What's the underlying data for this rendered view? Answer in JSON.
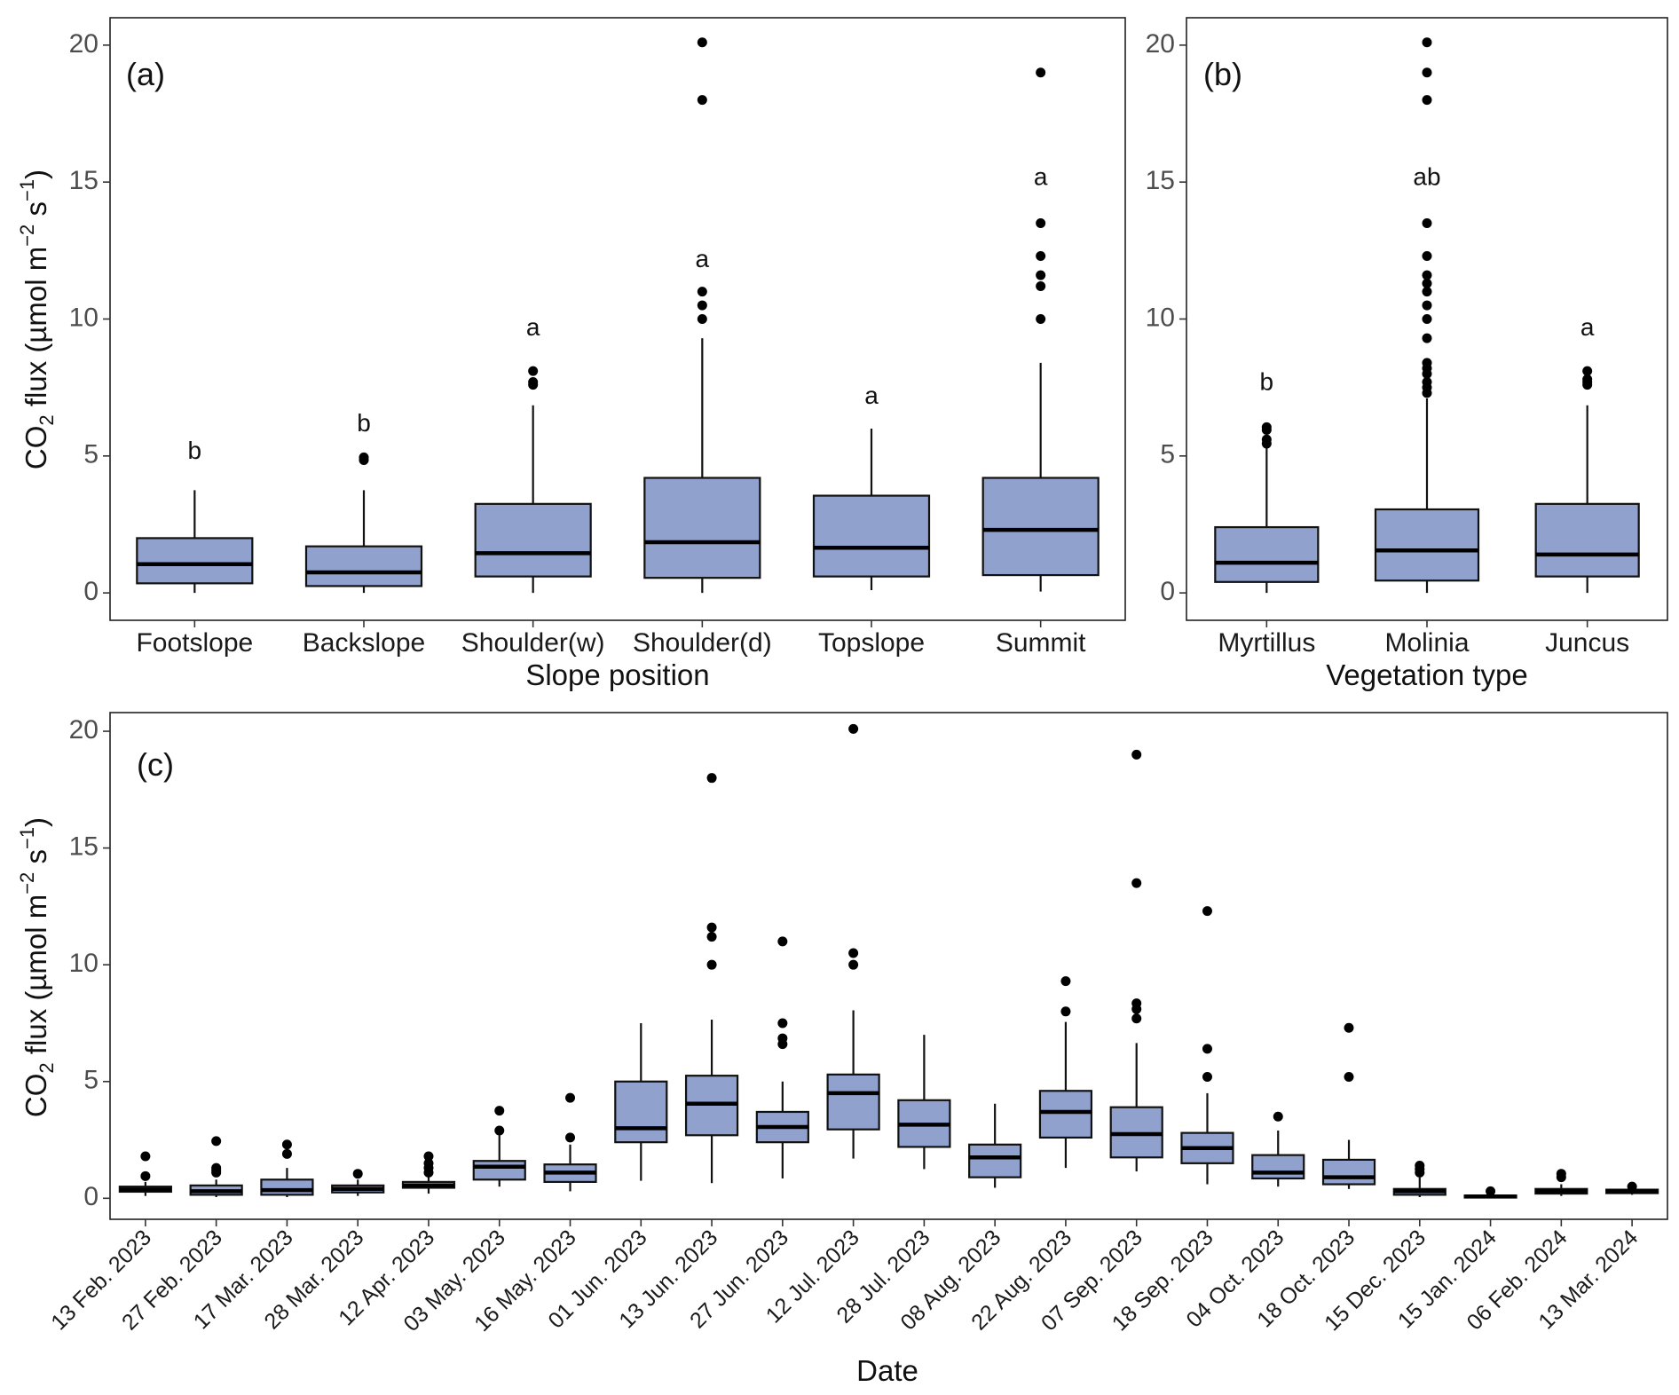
{
  "chart_data": [
    {
      "panel_label": "(a)",
      "type": "box",
      "xlabel": "Slope position",
      "ylabel_parts": {
        "pre": "CO",
        "sub": "2",
        "mid": " flux (µmol m",
        "sup1": "−2",
        "mid2": " s",
        "sup2": "−1",
        "post": ")"
      },
      "ylim": [
        -1,
        21
      ],
      "yticks": [
        0,
        5,
        10,
        15,
        20
      ],
      "yticklabels": [
        "0",
        "5",
        "10",
        "15",
        "20"
      ],
      "categories": [
        "Footslope",
        "Backslope",
        "Shoulder(w)",
        "Shoulder(d)",
        "Topslope",
        "Summit"
      ],
      "boxes": [
        {
          "min": 0,
          "q1": 0.35,
          "median": 1.05,
          "q3": 2.0,
          "max": 3.75,
          "outliers": [],
          "sig": "b",
          "sig_y": 4.9
        },
        {
          "min": 0,
          "q1": 0.25,
          "median": 0.75,
          "q3": 1.7,
          "max": 3.75,
          "outliers": [
            4.85,
            4.95
          ],
          "sig": "b",
          "sig_y": 5.9
        },
        {
          "min": 0,
          "q1": 0.6,
          "median": 1.45,
          "q3": 3.25,
          "max": 6.85,
          "outliers": [
            7.6,
            7.7,
            8.1
          ],
          "sig": "a",
          "sig_y": 9.4
        },
        {
          "min": 0,
          "q1": 0.55,
          "median": 1.85,
          "q3": 4.2,
          "max": 9.3,
          "outliers": [
            10.0,
            10.5,
            11.0,
            18.0,
            20.1
          ],
          "sig": "a",
          "sig_y": 11.9
        },
        {
          "min": 0.1,
          "q1": 0.6,
          "median": 1.65,
          "q3": 3.55,
          "max": 6.0,
          "outliers": [],
          "sig": "a",
          "sig_y": 6.9
        },
        {
          "min": 0.05,
          "q1": 0.65,
          "median": 2.3,
          "q3": 4.2,
          "max": 8.4,
          "outliers": [
            10.0,
            11.2,
            11.6,
            12.3,
            13.5,
            19.0
          ],
          "sig": "a",
          "sig_y": 14.9
        }
      ]
    },
    {
      "panel_label": "(b)",
      "type": "box",
      "xlabel": "Vegetation type",
      "ylim": [
        -1,
        21
      ],
      "yticks": [
        0,
        5,
        10,
        15,
        20
      ],
      "yticklabels": [
        "0",
        "5",
        "10",
        "15",
        "20"
      ],
      "categories": [
        "Myrtillus",
        "Molinia",
        "Juncus"
      ],
      "boxes": [
        {
          "min": 0,
          "q1": 0.4,
          "median": 1.1,
          "q3": 2.4,
          "max": 5.35,
          "outliers": [
            5.45,
            5.6,
            5.95,
            6.05
          ],
          "sig": "b",
          "sig_y": 7.4
        },
        {
          "min": 0,
          "q1": 0.45,
          "median": 1.55,
          "q3": 3.05,
          "max": 7.1,
          "outliers": [
            7.3,
            7.5,
            7.7,
            8.0,
            8.2,
            8.4,
            9.3,
            10.0,
            10.5,
            11.0,
            11.3,
            11.6,
            12.3,
            13.5,
            18.0,
            19.0,
            20.1
          ],
          "sig": "ab",
          "sig_y": 14.9
        },
        {
          "min": 0,
          "q1": 0.6,
          "median": 1.4,
          "q3": 3.25,
          "max": 6.85,
          "outliers": [
            7.6,
            7.7,
            7.8,
            8.1
          ],
          "sig": "a",
          "sig_y": 9.4
        }
      ]
    },
    {
      "panel_label": "(c)",
      "type": "box",
      "xlabel": "Date",
      "ylim": [
        -0.9,
        20.8
      ],
      "yticks": [
        0,
        5,
        10,
        15,
        20
      ],
      "yticklabels": [
        "0",
        "5",
        "10",
        "15",
        "20"
      ],
      "categories": [
        "13 Feb. 2023",
        "27 Feb. 2023",
        "17 Mar. 2023",
        "28 Mar. 2023",
        "12 Apr. 2023",
        "03 May. 2023",
        "16 May. 2023",
        "01 Jun. 2023",
        "13 Jun. 2023",
        "27 Jun. 2023",
        "12 Jul. 2023",
        "28 Jul. 2023",
        "08 Aug. 2023",
        "22 Aug. 2023",
        "07 Sep. 2023",
        "18 Sep. 2023",
        "04 Oct. 2023",
        "18 Oct. 2023",
        "15 Dec. 2023",
        "15 Jan. 2024",
        "06 Feb. 2024",
        "13 Mar. 2024"
      ],
      "boxes": [
        {
          "min": 0.1,
          "q1": 0.28,
          "median": 0.38,
          "q3": 0.5,
          "max": 0.7,
          "outliers": [
            0.95,
            1.8
          ]
        },
        {
          "min": 0.05,
          "q1": 0.15,
          "median": 0.3,
          "q3": 0.55,
          "max": 0.8,
          "outliers": [
            1.1,
            1.2,
            1.3,
            2.45
          ]
        },
        {
          "min": 0.05,
          "q1": 0.15,
          "median": 0.35,
          "q3": 0.8,
          "max": 1.3,
          "outliers": [
            1.9,
            2.3
          ]
        },
        {
          "min": 0.1,
          "q1": 0.25,
          "median": 0.4,
          "q3": 0.55,
          "max": 0.8,
          "outliers": [
            1.05
          ]
        },
        {
          "min": 0.2,
          "q1": 0.45,
          "median": 0.55,
          "q3": 0.7,
          "max": 0.95,
          "outliers": [
            1.1,
            1.3,
            1.5,
            1.8
          ]
        },
        {
          "min": 0.5,
          "q1": 0.8,
          "median": 1.35,
          "q3": 1.6,
          "max": 2.7,
          "outliers": [
            2.9,
            3.75
          ]
        },
        {
          "min": 0.3,
          "q1": 0.7,
          "median": 1.1,
          "q3": 1.45,
          "max": 2.3,
          "outliers": [
            2.6,
            4.3
          ]
        },
        {
          "min": 0.75,
          "q1": 2.4,
          "median": 3.0,
          "q3": 5.0,
          "max": 7.5,
          "outliers": []
        },
        {
          "min": 0.65,
          "q1": 2.7,
          "median": 4.05,
          "q3": 5.25,
          "max": 7.65,
          "outliers": [
            10.0,
            11.2,
            11.6,
            18.0
          ]
        },
        {
          "min": 0.85,
          "q1": 2.4,
          "median": 3.05,
          "q3": 3.7,
          "max": 5.0,
          "outliers": [
            6.6,
            6.85,
            7.5,
            11.0
          ]
        },
        {
          "min": 1.7,
          "q1": 2.95,
          "median": 4.5,
          "q3": 5.3,
          "max": 8.05,
          "outliers": [
            10.0,
            10.5,
            20.1
          ]
        },
        {
          "min": 1.25,
          "q1": 2.2,
          "median": 3.15,
          "q3": 4.2,
          "max": 7.0,
          "outliers": []
        },
        {
          "min": 0.45,
          "q1": 0.9,
          "median": 1.75,
          "q3": 2.3,
          "max": 4.05,
          "outliers": []
        },
        {
          "min": 1.3,
          "q1": 2.6,
          "median": 3.7,
          "q3": 4.6,
          "max": 7.55,
          "outliers": [
            8.0,
            9.3
          ]
        },
        {
          "min": 1.15,
          "q1": 1.75,
          "median": 2.75,
          "q3": 3.9,
          "max": 6.65,
          "outliers": [
            7.7,
            8.1,
            8.35,
            13.5,
            19.0
          ]
        },
        {
          "min": 0.6,
          "q1": 1.5,
          "median": 2.15,
          "q3": 2.8,
          "max": 4.5,
          "outliers": [
            5.2,
            6.4,
            12.3
          ]
        },
        {
          "min": 0.5,
          "q1": 0.85,
          "median": 1.1,
          "q3": 1.85,
          "max": 2.9,
          "outliers": [
            3.5
          ]
        },
        {
          "min": 0.4,
          "q1": 0.6,
          "median": 0.9,
          "q3": 1.65,
          "max": 2.5,
          "outliers": [
            5.2,
            7.3
          ]
        },
        {
          "min": 0.05,
          "q1": 0.15,
          "median": 0.3,
          "q3": 0.4,
          "max": 0.9,
          "outliers": [
            1.1,
            1.25,
            1.4
          ]
        },
        {
          "min": 0.0,
          "q1": 0.03,
          "median": 0.08,
          "q3": 0.12,
          "max": 0.2,
          "outliers": [
            0.3
          ]
        },
        {
          "min": 0.1,
          "q1": 0.2,
          "median": 0.3,
          "q3": 0.4,
          "max": 0.6,
          "outliers": [
            0.9,
            1.05
          ]
        },
        {
          "min": 0.15,
          "q1": 0.22,
          "median": 0.3,
          "q3": 0.37,
          "max": 0.4,
          "outliers": [
            0.5
          ]
        }
      ]
    }
  ]
}
